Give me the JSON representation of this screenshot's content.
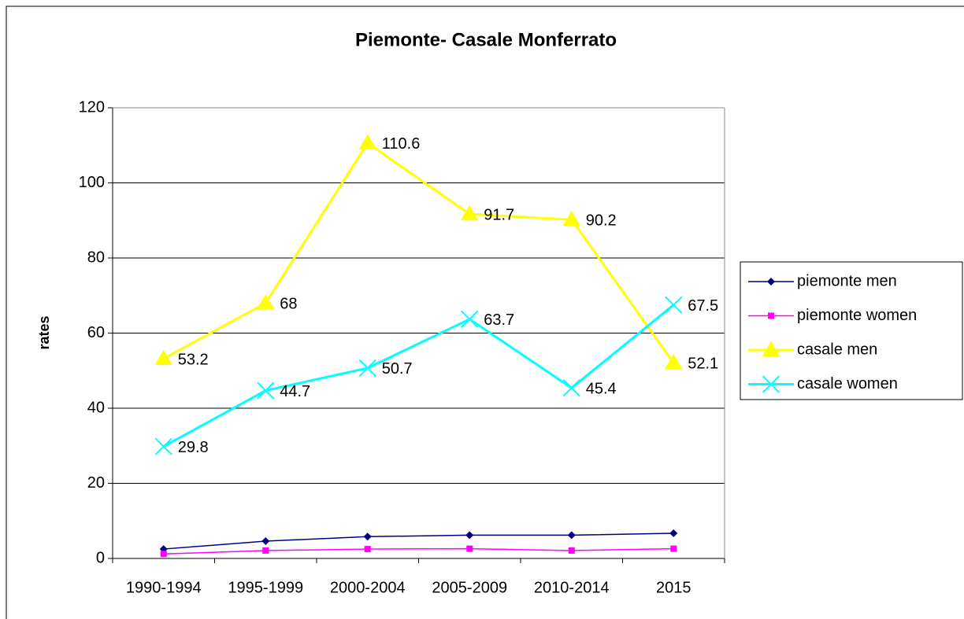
{
  "chart_data": {
    "type": "line",
    "title": "Piemonte- Casale Monferrato",
    "y_label": "rates",
    "categories": [
      "1990-1994",
      "1995-1999",
      "2000-2004",
      "2005-2009",
      "2010-2014",
      "2015"
    ],
    "series": [
      {
        "name": "piemonte men",
        "color": "#000080",
        "marker": "diamond",
        "data_labels": false,
        "values": [
          2.5,
          4.6,
          5.8,
          6.2,
          6.2,
          6.7
        ]
      },
      {
        "name": "piemonte women",
        "color": "#ff00ff",
        "marker": "square",
        "data_labels": false,
        "values": [
          1.2,
          2.1,
          2.5,
          2.6,
          2.1,
          2.6
        ]
      },
      {
        "name": "casale men",
        "color": "#ffff00",
        "marker": "triangle",
        "data_labels": true,
        "values": [
          53.2,
          68,
          110.6,
          91.7,
          90.2,
          52.1
        ]
      },
      {
        "name": "casale women",
        "color": "#00ffff",
        "marker": "x",
        "data_labels": true,
        "values": [
          29.8,
          44.7,
          50.7,
          63.7,
          45.4,
          67.5
        ]
      }
    ],
    "ylim": [
      0,
      120
    ],
    "yticks": [
      0,
      20,
      40,
      60,
      80,
      100,
      120
    ],
    "grid": true,
    "legend": "right"
  }
}
